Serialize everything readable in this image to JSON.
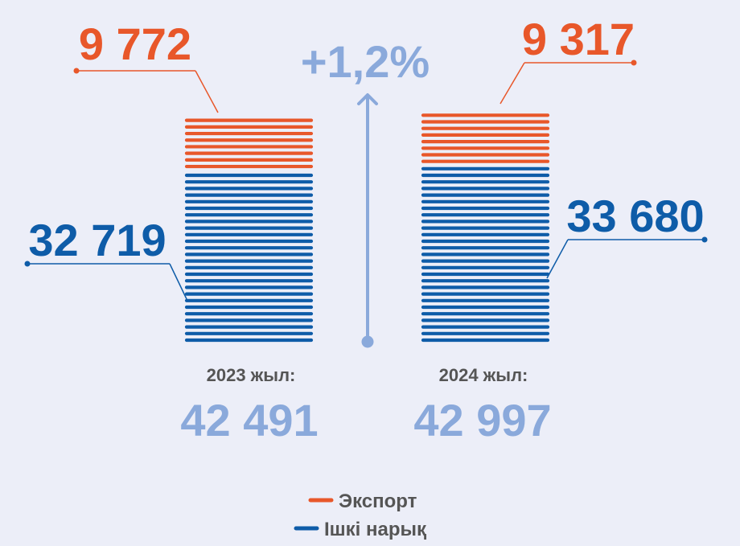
{
  "chart_data": {
    "type": "bar",
    "stacked": true,
    "categories": [
      "2023 жыл:",
      "2024 жыл:"
    ],
    "totals": [
      "42 491",
      "42 997"
    ],
    "change_label": "+1,2%",
    "series": [
      {
        "name": "Ішкі нарық",
        "values": [
          32719,
          33680
        ],
        "labels": [
          "32 719",
          "33 680"
        ],
        "color": "#0e5ca8"
      },
      {
        "name": "Экспорт",
        "values": [
          9772,
          9317
        ],
        "labels": [
          "9 772",
          "9 317"
        ],
        "color": "#e8572a"
      }
    ],
    "legend_position": "bottom-center",
    "grid": false
  },
  "colors": {
    "background": "#eceef8",
    "export": "#e8572a",
    "domestic": "#0e5ca8",
    "total": "#8aa9db",
    "year_label": "#555555",
    "arrow": "#8aa9db"
  }
}
